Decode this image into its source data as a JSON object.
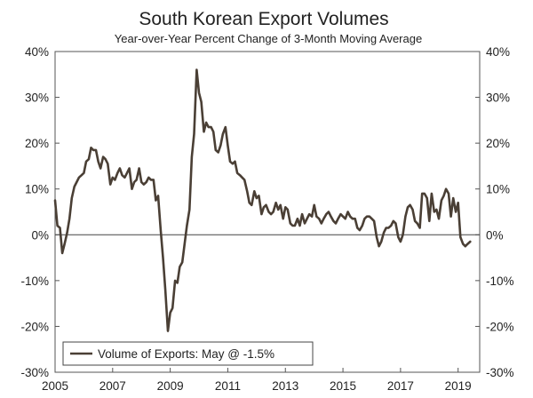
{
  "chart_data": {
    "type": "line",
    "title": "South Korean Export Volumes",
    "subtitle": "Year-over-Year Percent Change of 3-Month Moving Average",
    "xlabel": "",
    "ylabel": "",
    "x_range": [
      2005.0,
      2019.75
    ],
    "ylim": [
      -30,
      40
    ],
    "y_ticks": [
      40,
      30,
      20,
      10,
      0,
      -10,
      -20,
      -30
    ],
    "y_tick_labels": [
      "40%",
      "30%",
      "20%",
      "10%",
      "0%",
      "-10%",
      "-20%",
      "-30%"
    ],
    "x_ticks": [
      2005,
      2007,
      2009,
      2011,
      2013,
      2015,
      2017,
      2019
    ],
    "x_tick_labels": [
      "2005",
      "2007",
      "2009",
      "2011",
      "2013",
      "2015",
      "2017",
      "2019"
    ],
    "grid": false,
    "zero_line": true,
    "legend_position": "bottom-left",
    "series": [
      {
        "name": "Volume of Exports: May @ -1.5%",
        "color": "#4a3f35",
        "points": [
          [
            2005.0,
            7.5
          ],
          [
            2005.08,
            2
          ],
          [
            2005.17,
            1.5
          ],
          [
            2005.25,
            -4
          ],
          [
            2005.33,
            -2
          ],
          [
            2005.42,
            0.5
          ],
          [
            2005.5,
            3.5
          ],
          [
            2005.58,
            8
          ],
          [
            2005.67,
            10.5
          ],
          [
            2005.75,
            11.5
          ],
          [
            2005.83,
            12.5
          ],
          [
            2005.92,
            13
          ],
          [
            2006.0,
            13.5
          ],
          [
            2006.08,
            16
          ],
          [
            2006.17,
            16.5
          ],
          [
            2006.25,
            19
          ],
          [
            2006.33,
            18.5
          ],
          [
            2006.42,
            18.5
          ],
          [
            2006.5,
            16
          ],
          [
            2006.58,
            14.5
          ],
          [
            2006.67,
            17
          ],
          [
            2006.75,
            16.5
          ],
          [
            2006.83,
            15.5
          ],
          [
            2006.92,
            11
          ],
          [
            2007.0,
            12.5
          ],
          [
            2007.08,
            12
          ],
          [
            2007.17,
            13.5
          ],
          [
            2007.25,
            14.5
          ],
          [
            2007.33,
            13
          ],
          [
            2007.42,
            12.5
          ],
          [
            2007.5,
            13.5
          ],
          [
            2007.58,
            14.5
          ],
          [
            2007.67,
            10
          ],
          [
            2007.75,
            11.5
          ],
          [
            2007.83,
            12
          ],
          [
            2007.92,
            14.5
          ],
          [
            2008.0,
            11.5
          ],
          [
            2008.08,
            11
          ],
          [
            2008.17,
            11.5
          ],
          [
            2008.25,
            12.5
          ],
          [
            2008.33,
            12
          ],
          [
            2008.42,
            12
          ],
          [
            2008.5,
            7.5
          ],
          [
            2008.58,
            8.5
          ],
          [
            2008.67,
            1
          ],
          [
            2008.75,
            -5
          ],
          [
            2008.83,
            -12
          ],
          [
            2008.92,
            -21
          ],
          [
            2009.0,
            -17
          ],
          [
            2009.08,
            -16
          ],
          [
            2009.17,
            -10
          ],
          [
            2009.25,
            -10.5
          ],
          [
            2009.33,
            -7
          ],
          [
            2009.42,
            -6
          ],
          [
            2009.5,
            -2
          ],
          [
            2009.58,
            2
          ],
          [
            2009.67,
            5.5
          ],
          [
            2009.75,
            17
          ],
          [
            2009.83,
            22
          ],
          [
            2009.92,
            36
          ],
          [
            2010.0,
            31
          ],
          [
            2010.08,
            29
          ],
          [
            2010.17,
            22.5
          ],
          [
            2010.25,
            24.5
          ],
          [
            2010.33,
            23.5
          ],
          [
            2010.42,
            23.5
          ],
          [
            2010.5,
            22.5
          ],
          [
            2010.58,
            18.5
          ],
          [
            2010.67,
            18
          ],
          [
            2010.75,
            19.5
          ],
          [
            2010.83,
            22
          ],
          [
            2010.92,
            23.5
          ],
          [
            2011.0,
            19.5
          ],
          [
            2011.08,
            16
          ],
          [
            2011.17,
            15.5
          ],
          [
            2011.25,
            16
          ],
          [
            2011.33,
            13.5
          ],
          [
            2011.42,
            13
          ],
          [
            2011.5,
            12.5
          ],
          [
            2011.58,
            12
          ],
          [
            2011.67,
            9.5
          ],
          [
            2011.75,
            7
          ],
          [
            2011.83,
            6.5
          ],
          [
            2011.92,
            9.5
          ],
          [
            2012.0,
            8
          ],
          [
            2012.08,
            8.5
          ],
          [
            2012.17,
            4.5
          ],
          [
            2012.25,
            6
          ],
          [
            2012.33,
            6.5
          ],
          [
            2012.42,
            5
          ],
          [
            2012.5,
            4.5
          ],
          [
            2012.58,
            5
          ],
          [
            2012.67,
            7
          ],
          [
            2012.75,
            5.5
          ],
          [
            2012.83,
            6.5
          ],
          [
            2012.92,
            3.5
          ],
          [
            2013.0,
            6
          ],
          [
            2013.08,
            5.5
          ],
          [
            2013.17,
            2.5
          ],
          [
            2013.25,
            2
          ],
          [
            2013.33,
            2
          ],
          [
            2013.42,
            3.5
          ],
          [
            2013.5,
            2
          ],
          [
            2013.58,
            4.5
          ],
          [
            2013.67,
            2.5
          ],
          [
            2013.75,
            3.5
          ],
          [
            2013.83,
            4.5
          ],
          [
            2013.92,
            4
          ],
          [
            2014.0,
            6.5
          ],
          [
            2014.08,
            4
          ],
          [
            2014.17,
            3.5
          ],
          [
            2014.25,
            2.5
          ],
          [
            2014.33,
            3.5
          ],
          [
            2014.42,
            4.5
          ],
          [
            2014.5,
            5
          ],
          [
            2014.58,
            4
          ],
          [
            2014.67,
            3
          ],
          [
            2014.75,
            2.5
          ],
          [
            2014.83,
            3.5
          ],
          [
            2014.92,
            4.5
          ],
          [
            2015.0,
            4
          ],
          [
            2015.08,
            3.5
          ],
          [
            2015.17,
            5
          ],
          [
            2015.25,
            4
          ],
          [
            2015.33,
            3.5
          ],
          [
            2015.42,
            3.5
          ],
          [
            2015.5,
            1.5
          ],
          [
            2015.58,
            1
          ],
          [
            2015.67,
            2
          ],
          [
            2015.75,
            3.5
          ],
          [
            2015.83,
            4
          ],
          [
            2015.92,
            4
          ],
          [
            2016.0,
            3.5
          ],
          [
            2016.08,
            3
          ],
          [
            2016.17,
            -0.5
          ],
          [
            2016.25,
            -2.5
          ],
          [
            2016.33,
            -1.5
          ],
          [
            2016.42,
            0.5
          ],
          [
            2016.5,
            1.5
          ],
          [
            2016.58,
            1.5
          ],
          [
            2016.67,
            2
          ],
          [
            2016.75,
            3
          ],
          [
            2016.83,
            2.5
          ],
          [
            2016.92,
            -0.5
          ],
          [
            2017.0,
            -1.5
          ],
          [
            2017.08,
            0
          ],
          [
            2017.17,
            4
          ],
          [
            2017.25,
            6
          ],
          [
            2017.33,
            6.5
          ],
          [
            2017.42,
            5.5
          ],
          [
            2017.5,
            3
          ],
          [
            2017.58,
            2.5
          ],
          [
            2017.67,
            1.5
          ],
          [
            2017.75,
            9
          ],
          [
            2017.83,
            9
          ],
          [
            2017.92,
            8
          ],
          [
            2018.0,
            3
          ],
          [
            2018.08,
            9
          ],
          [
            2018.17,
            5
          ],
          [
            2018.25,
            5.5
          ],
          [
            2018.33,
            3.5
          ],
          [
            2018.42,
            7.5
          ],
          [
            2018.5,
            8.5
          ],
          [
            2018.58,
            10
          ],
          [
            2018.67,
            9
          ],
          [
            2018.75,
            4
          ],
          [
            2018.83,
            8
          ],
          [
            2018.92,
            5
          ],
          [
            2019.0,
            7
          ],
          [
            2019.08,
            -0.5
          ],
          [
            2019.17,
            -2
          ],
          [
            2019.25,
            -2.5
          ],
          [
            2019.33,
            -2
          ],
          [
            2019.42,
            -1.5
          ]
        ]
      }
    ]
  }
}
